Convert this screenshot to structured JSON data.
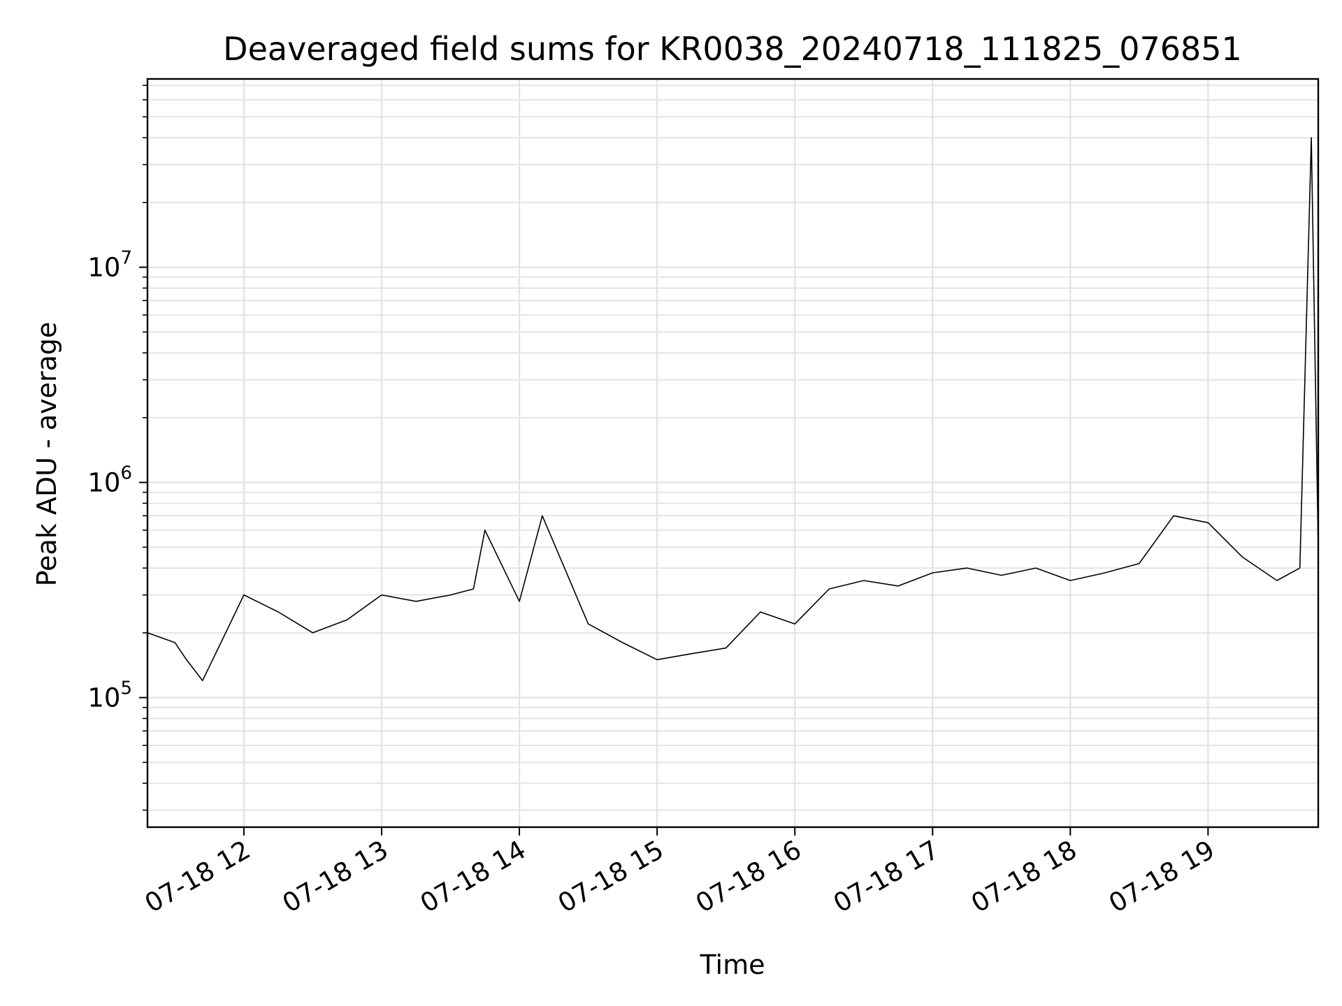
{
  "chart_data": {
    "type": "line",
    "title": "Deaveraged field sums for KR0038_20240718_111825_076851",
    "xlabel": "Time",
    "ylabel": "Peak ADU - average",
    "y_scale": "log",
    "ylim": [
      25000,
      75000000
    ],
    "xlim": [
      "2024-07-18 11:18",
      "2024-07-18 19:48"
    ],
    "grid": true,
    "line_color": "#000000",
    "grid_color": "#e4e4e4",
    "x_ticks": [
      {
        "value": "2024-07-18 12:00",
        "label": "07-18 12"
      },
      {
        "value": "2024-07-18 13:00",
        "label": "07-18 13"
      },
      {
        "value": "2024-07-18 14:00",
        "label": "07-18 14"
      },
      {
        "value": "2024-07-18 15:00",
        "label": "07-18 15"
      },
      {
        "value": "2024-07-18 16:00",
        "label": "07-18 16"
      },
      {
        "value": "2024-07-18 17:00",
        "label": "07-18 17"
      },
      {
        "value": "2024-07-18 18:00",
        "label": "07-18 18"
      },
      {
        "value": "2024-07-18 19:00",
        "label": "07-18 19"
      }
    ],
    "y_ticks": [
      {
        "value": 100000,
        "base": "10",
        "exp": "5"
      },
      {
        "value": 1000000,
        "base": "10",
        "exp": "6"
      },
      {
        "value": 10000000,
        "base": "10",
        "exp": "7"
      }
    ],
    "series": [
      {
        "x": [
          "2024-07-18 11:18",
          "2024-07-18 11:30",
          "2024-07-18 11:35",
          "2024-07-18 11:42",
          "2024-07-18 11:50",
          "2024-07-18 12:00",
          "2024-07-18 12:15",
          "2024-07-18 12:30",
          "2024-07-18 12:45",
          "2024-07-18 13:00",
          "2024-07-18 13:15",
          "2024-07-18 13:30",
          "2024-07-18 13:40",
          "2024-07-18 13:45",
          "2024-07-18 14:00",
          "2024-07-18 14:10",
          "2024-07-18 14:30",
          "2024-07-18 14:45",
          "2024-07-18 15:00",
          "2024-07-18 15:15",
          "2024-07-18 15:30",
          "2024-07-18 15:45",
          "2024-07-18 16:00",
          "2024-07-18 16:15",
          "2024-07-18 16:30",
          "2024-07-18 16:45",
          "2024-07-18 17:00",
          "2024-07-18 17:15",
          "2024-07-18 17:30",
          "2024-07-18 17:45",
          "2024-07-18 18:00",
          "2024-07-18 18:15",
          "2024-07-18 18:30",
          "2024-07-18 18:45",
          "2024-07-18 19:00",
          "2024-07-18 19:15",
          "2024-07-18 19:30",
          "2024-07-18 19:40",
          "2024-07-18 19:45",
          "2024-07-18 19:48"
        ],
        "y": [
          200000,
          180000,
          150000,
          120000,
          180000,
          300000,
          250000,
          200000,
          230000,
          300000,
          280000,
          300000,
          320000,
          600000,
          280000,
          700000,
          220000,
          180000,
          150000,
          160000,
          170000,
          250000,
          220000,
          320000,
          350000,
          330000,
          380000,
          400000,
          370000,
          400000,
          350000,
          380000,
          420000,
          700000,
          650000,
          450000,
          350000,
          400000,
          40000000,
          500000
        ]
      }
    ]
  }
}
